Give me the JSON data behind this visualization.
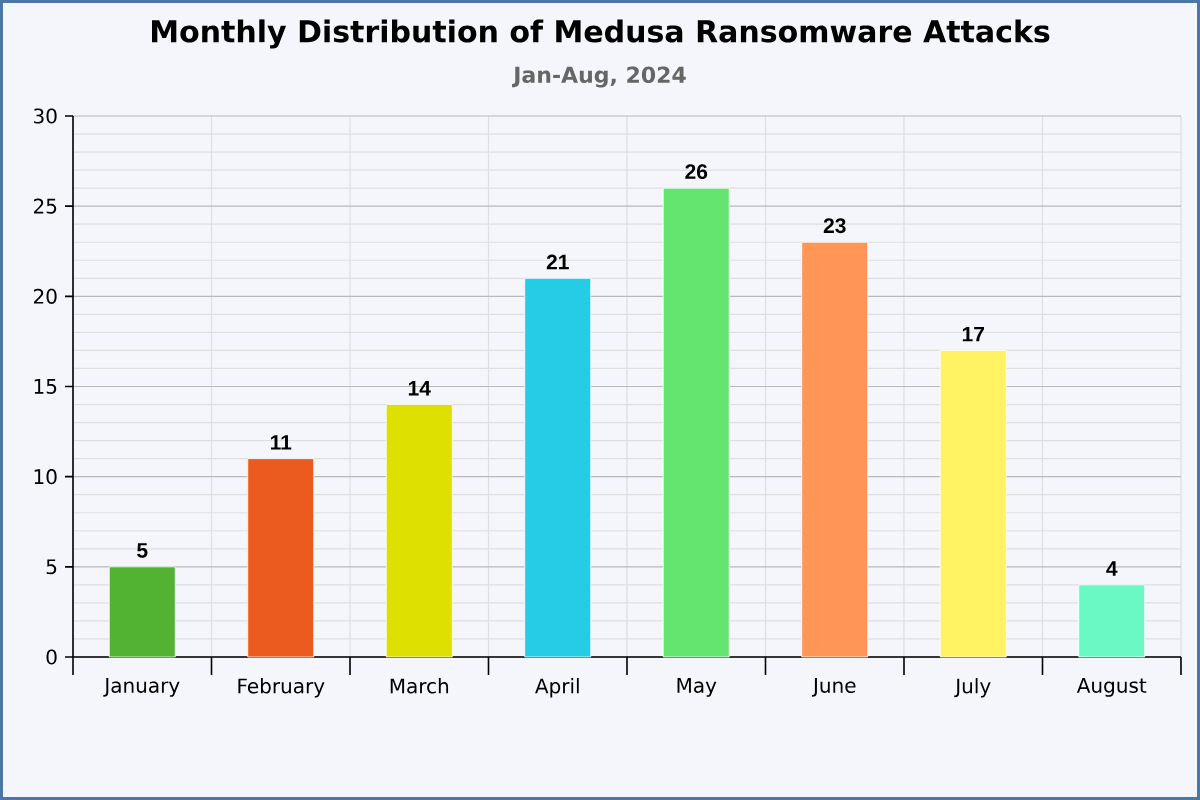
{
  "chart_data": {
    "type": "bar",
    "title": "Monthly Distribution of Medusa Ransomware Attacks",
    "subtitle": "Jan-Aug, 2024",
    "categories": [
      "January",
      "February",
      "March",
      "April",
      "May",
      "June",
      "July",
      "August"
    ],
    "values": [
      5,
      11,
      14,
      21,
      26,
      23,
      17,
      4
    ],
    "colors": [
      "#52b232",
      "#eb5a1e",
      "#dde000",
      "#24cde5",
      "#64e56f",
      "#ff9656",
      "#fff263",
      "#6af9c4"
    ],
    "ylim": [
      0,
      30
    ],
    "yticks": [
      0,
      5,
      10,
      15,
      20,
      25,
      30
    ],
    "grid": true,
    "data_labels": true
  }
}
